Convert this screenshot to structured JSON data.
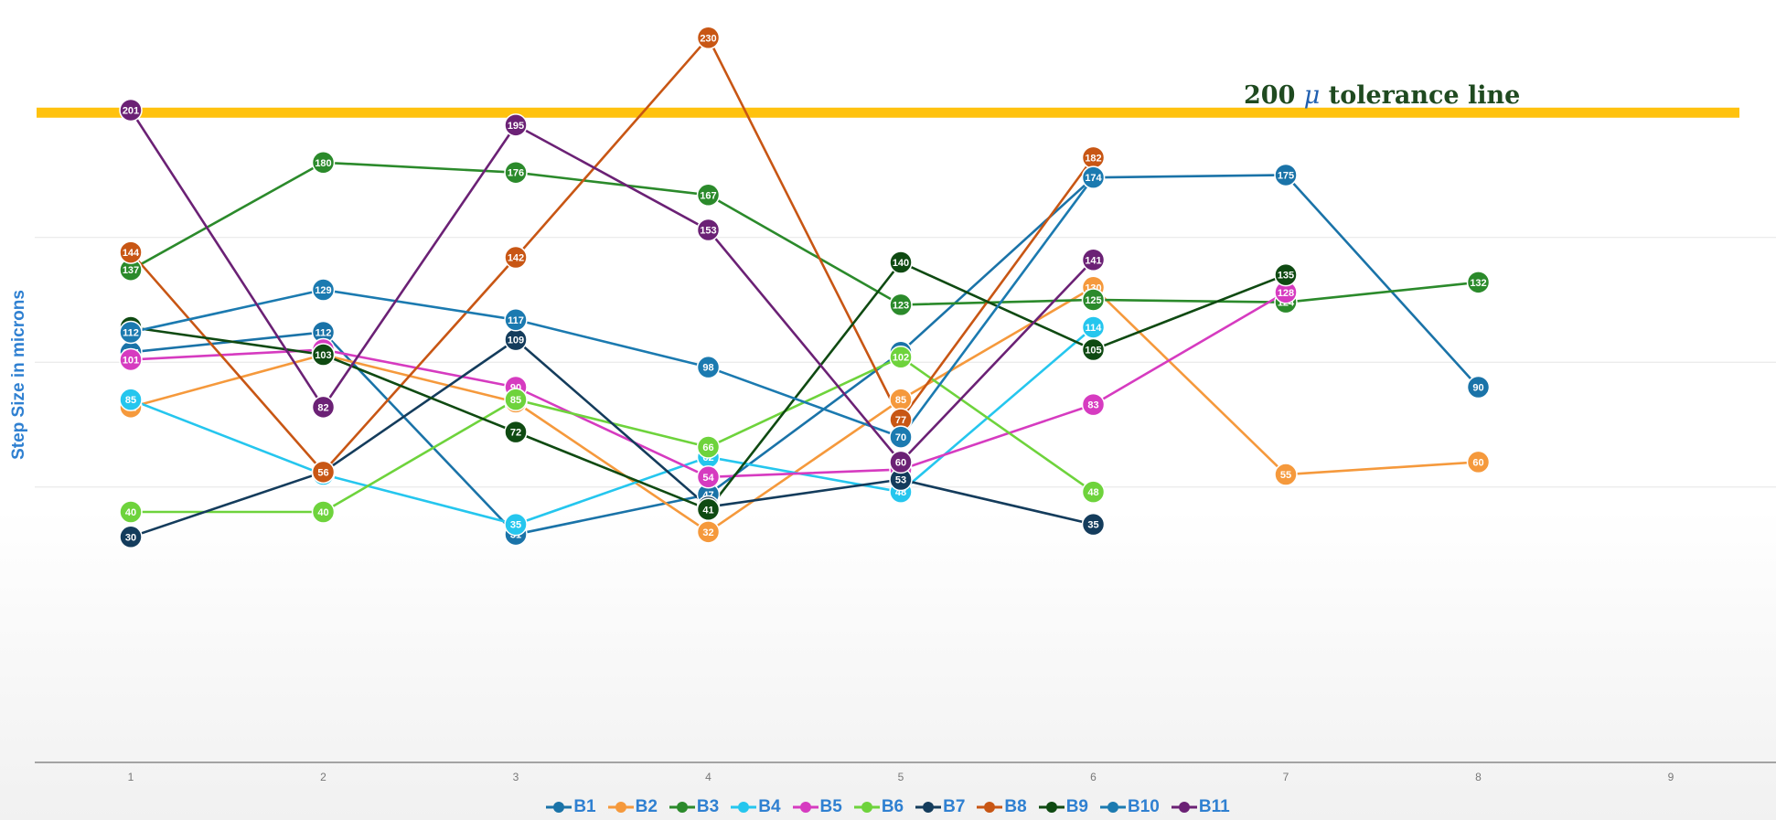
{
  "chart_data": {
    "type": "line",
    "title": "",
    "ylabel": "Step Size in microns",
    "xlabel": "",
    "x": [
      1,
      2,
      3,
      4,
      5,
      6,
      7,
      8,
      9
    ],
    "xlim": [
      1,
      9
    ],
    "ylim": [
      -60,
      240
    ],
    "grid": true,
    "legend": "bottom",
    "annotations": [
      {
        "text_prefix": "200 ",
        "symbol": "μ",
        "text_suffix": " tolerance line",
        "y": 200,
        "color": "#ffc20e"
      }
    ],
    "series": [
      {
        "name": "B1",
        "color": "#1a73a8",
        "values": [
          104,
          112,
          31,
          47,
          104,
          174,
          175,
          90,
          null
        ]
      },
      {
        "name": "B2",
        "color": "#f5993c",
        "values": [
          82,
          103,
          84,
          32,
          85,
          130,
          55,
          60,
          null
        ]
      },
      {
        "name": "B3",
        "color": "#2b8a2b",
        "values": [
          137,
          180,
          176,
          167,
          123,
          125,
          124,
          132,
          null
        ]
      },
      {
        "name": "B4",
        "color": "#25c6ee",
        "values": [
          85,
          55,
          35,
          62,
          48,
          114,
          null,
          null,
          null
        ]
      },
      {
        "name": "B5",
        "color": "#d63bc0",
        "values": [
          101,
          105,
          90,
          54,
          57,
          83,
          128,
          null,
          null
        ]
      },
      {
        "name": "B6",
        "color": "#6ed33c",
        "values": [
          40,
          40,
          85,
          66,
          102,
          48,
          null,
          null,
          null
        ]
      },
      {
        "name": "B7",
        "color": "#143c5c",
        "values": [
          30,
          56,
          109,
          42,
          53,
          35,
          null,
          null,
          null
        ]
      },
      {
        "name": "B8",
        "color": "#c85614",
        "values": [
          144,
          56,
          142,
          230,
          77,
          182,
          null,
          null,
          null
        ]
      },
      {
        "name": "B9",
        "color": "#0f4a12",
        "values": [
          114,
          103,
          72,
          41,
          140,
          105,
          135,
          null,
          null
        ]
      },
      {
        "name": "B10",
        "color": "#1b7ab0",
        "values": [
          112,
          129,
          117,
          98,
          70,
          174,
          null,
          null,
          null
        ]
      },
      {
        "name": "B11",
        "color": "#6b2175",
        "values": [
          201,
          82,
          195,
          153,
          60,
          141,
          null,
          null,
          null
        ]
      }
    ]
  }
}
